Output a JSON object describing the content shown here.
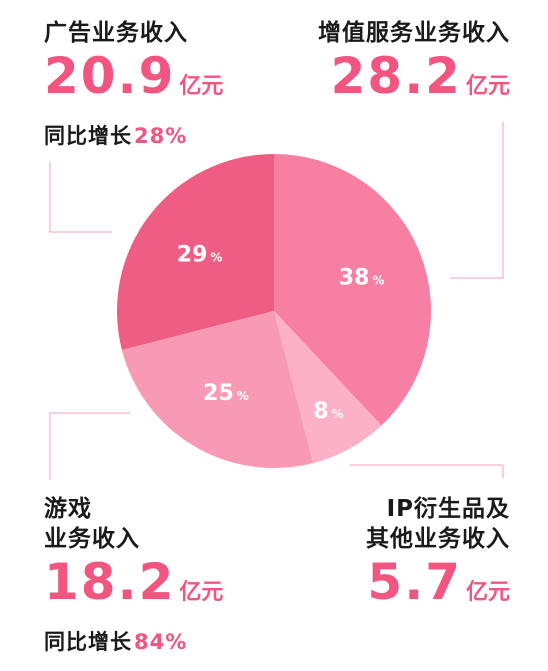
{
  "chart_data": {
    "type": "pie",
    "slices": [
      {
        "key": "ad",
        "value": 29,
        "label": "29",
        "color": "#f05d84"
      },
      {
        "key": "vas",
        "value": 38,
        "label": "38",
        "color": "#f77fa1"
      },
      {
        "key": "ip",
        "value": 8,
        "label": "8",
        "color": "#fdb1c7"
      },
      {
        "key": "game",
        "value": 25,
        "label": "25",
        "color": "#f99ab5"
      }
    ],
    "percent_sign": "%"
  },
  "blocks": {
    "ad": {
      "category": "广告业务收入",
      "value": "20.9",
      "unit": "亿元",
      "growth_label": "同比增长",
      "growth_value": "28%"
    },
    "vas": {
      "category": "增值服务业务收入",
      "value": "28.2",
      "unit": "亿元"
    },
    "game": {
      "category_line1": "游戏",
      "category_line2": "业务收入",
      "value": "18.2",
      "unit": "亿元",
      "growth_label": "同比增长",
      "growth_value": "84%"
    },
    "ip": {
      "category_line1": "IP衍生品及",
      "category_line2": "其他业务收入",
      "value": "5.7",
      "unit": "亿元"
    }
  },
  "colors": {
    "accent": "#f2557f",
    "connector": "#f4a3b7",
    "text": "#1a1a1a"
  }
}
